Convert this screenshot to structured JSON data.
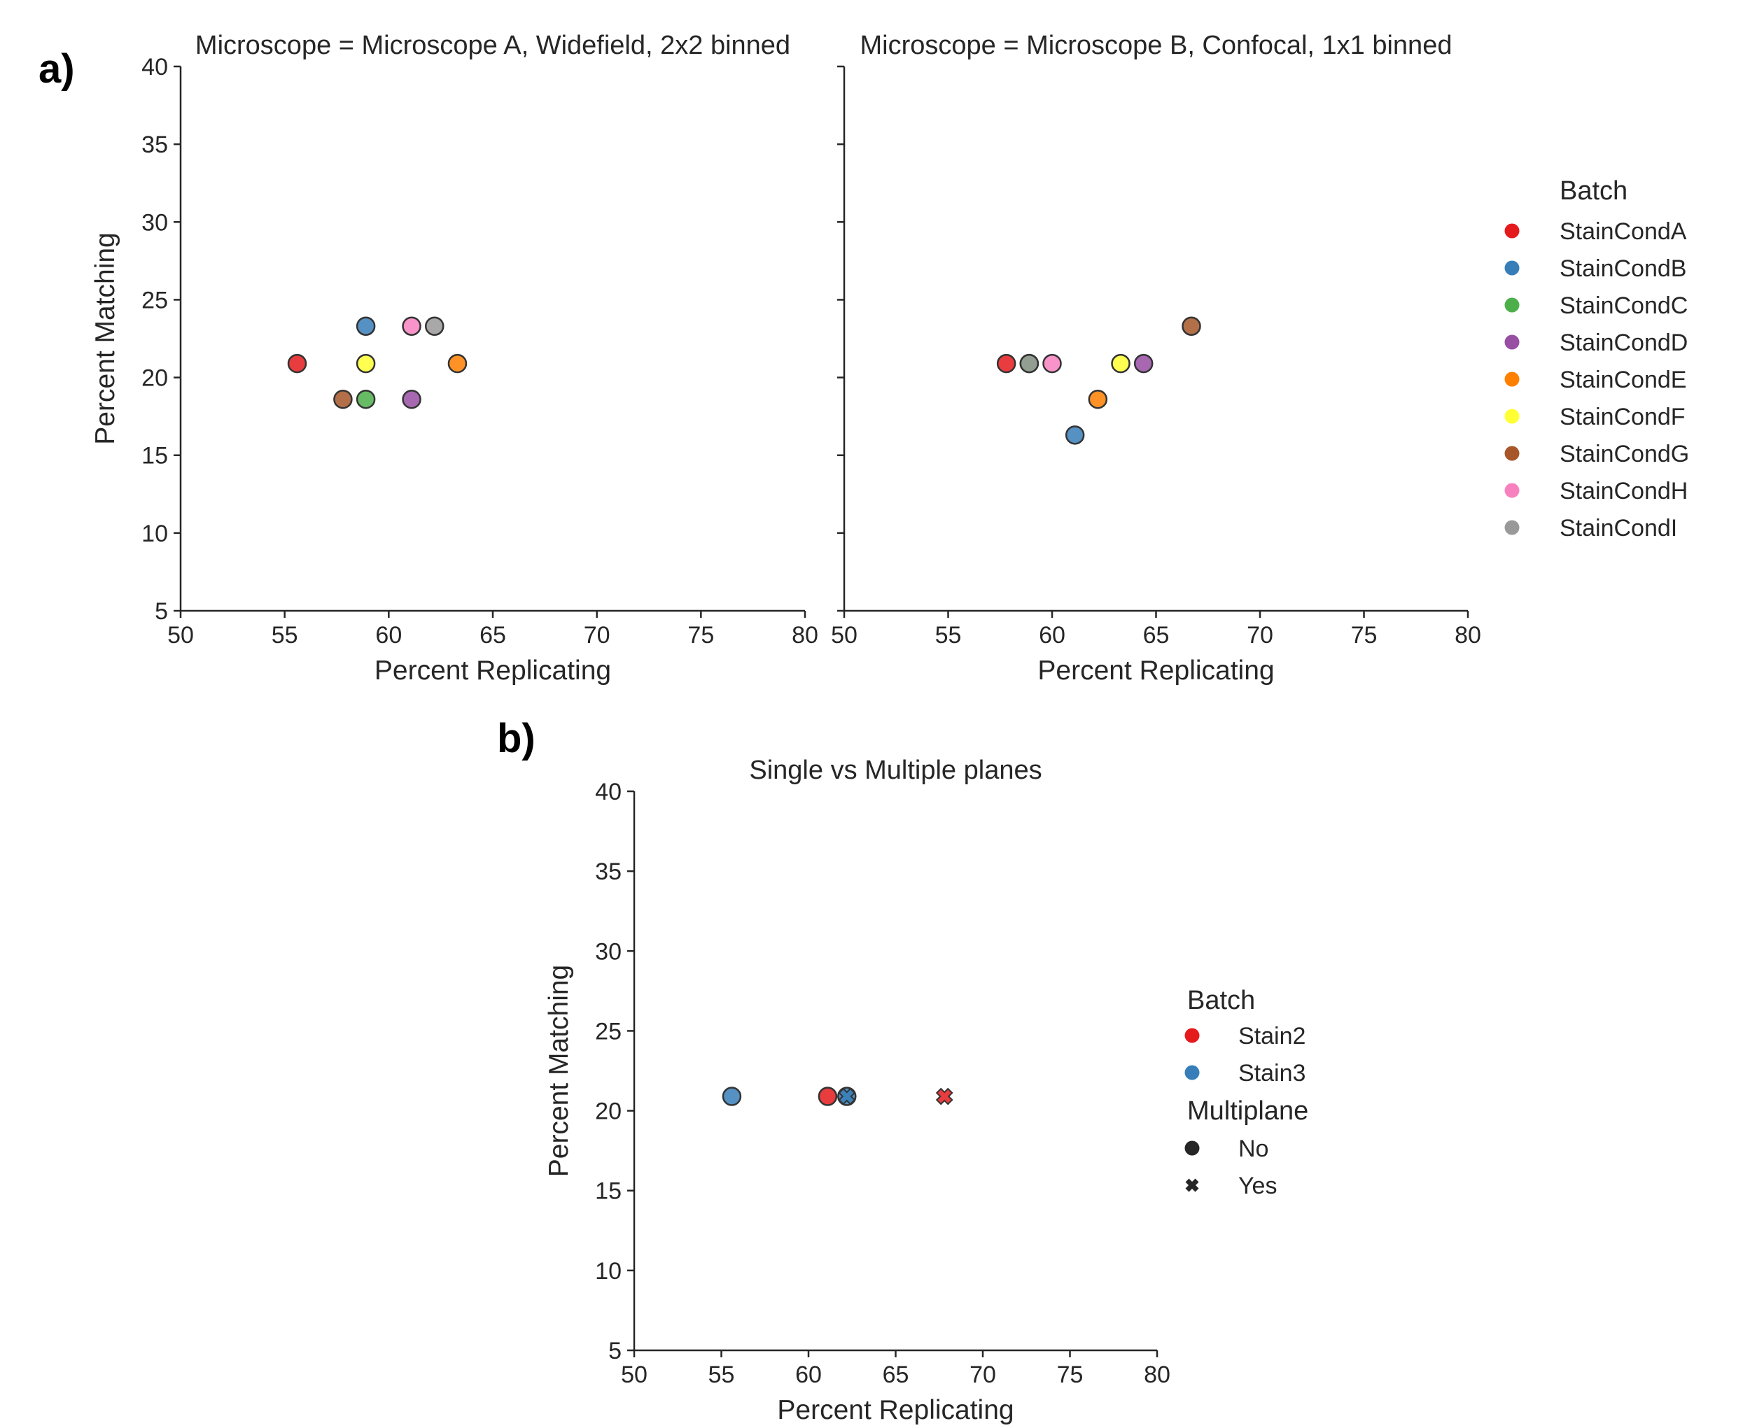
{
  "panels": {
    "a_label": "a)",
    "b_label": "b)"
  },
  "colors": {
    "StainCondA": "#e41a1c",
    "StainCondB": "#377eb8",
    "StainCondC": "#4daf4a",
    "StainCondD": "#984ea3",
    "StainCondE": "#ff7f00",
    "StainCondF": "#ffff33",
    "StainCondG": "#a65628",
    "StainCondH": "#f781bf",
    "StainCondI": "#999999",
    "Stain2": "#e41a1c",
    "Stain3": "#377eb8"
  },
  "legend_a": {
    "title": "Batch",
    "items": [
      "StainCondA",
      "StainCondB",
      "StainCondC",
      "StainCondD",
      "StainCondE",
      "StainCondF",
      "StainCondG",
      "StainCondH",
      "StainCondI"
    ]
  },
  "legend_b": {
    "batch_title": "Batch",
    "batch_items": [
      "Stain2",
      "Stain3"
    ],
    "multiplane_title": "Multiplane",
    "multiplane_items": [
      {
        "label": "No",
        "marker": "circle"
      },
      {
        "label": "Yes",
        "marker": "x"
      }
    ]
  },
  "chart_data": [
    {
      "type": "scatter",
      "title": "Microscope = Microscope A, Widefield, 2x2 binned",
      "xlabel": "Percent Replicating",
      "ylabel": "Percent Matching",
      "xlim": [
        50,
        80
      ],
      "ylim": [
        5,
        40
      ],
      "xticks": [
        "50",
        "55",
        "60",
        "65",
        "70",
        "75",
        "80"
      ],
      "yticks": [
        "5",
        "10",
        "15",
        "20",
        "25",
        "30",
        "35",
        "40"
      ],
      "legend": "right",
      "points": [
        {
          "batch": "StainCondA",
          "x": 55.6,
          "y": 20.9
        },
        {
          "batch": "StainCondB",
          "x": 58.9,
          "y": 23.3
        },
        {
          "batch": "StainCondC",
          "x": 58.9,
          "y": 18.6
        },
        {
          "batch": "StainCondD",
          "x": 61.1,
          "y": 18.6
        },
        {
          "batch": "StainCondE",
          "x": 63.3,
          "y": 20.9
        },
        {
          "batch": "StainCondF",
          "x": 58.9,
          "y": 20.9
        },
        {
          "batch": "StainCondG",
          "x": 57.8,
          "y": 18.6
        },
        {
          "batch": "StainCondH",
          "x": 61.1,
          "y": 23.3
        },
        {
          "batch": "StainCondI",
          "x": 62.2,
          "y": 23.3
        }
      ]
    },
    {
      "type": "scatter",
      "title": "Microscope = Microscope B, Confocal, 1x1 binned",
      "xlabel": "Percent Replicating",
      "ylabel": "",
      "xlim": [
        50,
        80
      ],
      "ylim": [
        5,
        40
      ],
      "xticks": [
        "50",
        "55",
        "60",
        "65",
        "70",
        "75",
        "80"
      ],
      "legend": "right",
      "points": [
        {
          "batch": "StainCondA",
          "x": 57.8,
          "y": 20.9
        },
        {
          "batch": "StainCondB",
          "x": 61.1,
          "y": 16.3
        },
        {
          "batch": "StainCondC",
          "x": 58.9,
          "y": 20.9
        },
        {
          "batch": "StainCondI",
          "x": 58.9,
          "y": 20.9
        },
        {
          "batch": "StainCondD",
          "x": 64.4,
          "y": 20.9
        },
        {
          "batch": "StainCondE",
          "x": 62.2,
          "y": 18.6
        },
        {
          "batch": "StainCondF",
          "x": 63.3,
          "y": 20.9
        },
        {
          "batch": "StainCondG",
          "x": 66.7,
          "y": 23.3
        },
        {
          "batch": "StainCondH",
          "x": 60.0,
          "y": 20.9
        }
      ]
    },
    {
      "type": "scatter",
      "title": "Single vs Multiple planes",
      "xlabel": "Percent Replicating",
      "ylabel": "Percent Matching",
      "xlim": [
        50,
        80
      ],
      "ylim": [
        5,
        40
      ],
      "xticks": [
        "50",
        "55",
        "60",
        "65",
        "70",
        "75",
        "80"
      ],
      "yticks": [
        "5",
        "10",
        "15",
        "20",
        "25",
        "30",
        "35",
        "40"
      ],
      "legend": "right",
      "points": [
        {
          "batch": "Stain3",
          "multiplane": "No",
          "x": 55.6,
          "y": 20.9
        },
        {
          "batch": "Stain2",
          "multiplane": "No",
          "x": 61.1,
          "y": 20.9
        },
        {
          "batch": "Stain3",
          "multiplane": "No",
          "x": 62.2,
          "y": 20.9
        },
        {
          "batch": "Stain3",
          "multiplane": "Yes",
          "x": 62.2,
          "y": 20.9
        },
        {
          "batch": "Stain2",
          "multiplane": "Yes",
          "x": 67.8,
          "y": 20.9
        }
      ]
    }
  ]
}
